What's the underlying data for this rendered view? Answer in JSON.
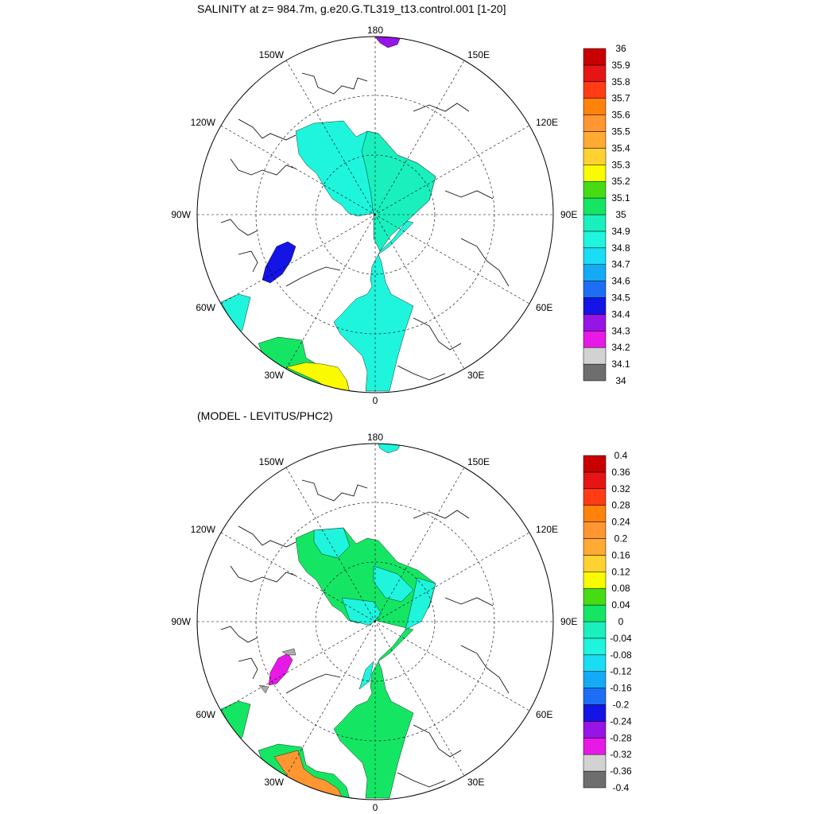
{
  "panels": [
    {
      "title": "SALINITY at z= 984.7m, g.e20.G.TL319_t13.control.001 [1-20]",
      "colorbar": {
        "labels": [
          "34",
          "34.1",
          "34.2",
          "34.3",
          "34.4",
          "34.5",
          "34.6",
          "34.7",
          "34.8",
          "34.9",
          "35",
          "35.1",
          "35.2",
          "35.3",
          "35.4",
          "35.5",
          "35.6",
          "35.7",
          "35.8",
          "35.9",
          "36"
        ],
        "colors": [
          "#6e6e6e",
          "#d2d2d2",
          "#e619e6",
          "#9614e6",
          "#1414e6",
          "#1e6ef5",
          "#14aaf5",
          "#19dcf5",
          "#1ef5dc",
          "#19f0be",
          "#14e664",
          "#46dc14",
          "#fafa00",
          "#ffd232",
          "#ffaa32",
          "#ff9632",
          "#ff820a",
          "#ff3c14",
          "#e61414",
          "#c80000"
        ]
      }
    },
    {
      "title": "(MODEL - LEVITUS/PHC2)",
      "colorbar": {
        "labels": [
          "-0.4",
          "-0.36",
          "-0.32",
          "-0.28",
          "-0.24",
          "-0.2",
          "-0.16",
          "-0.12",
          "-0.08",
          "-0.04",
          "0",
          "0.04",
          "0.08",
          "0.12",
          "0.16",
          "0.2",
          "0.24",
          "0.28",
          "0.32",
          "0.36",
          "0.4"
        ],
        "colors": [
          "#6e6e6e",
          "#d2d2d2",
          "#e619e6",
          "#9614e6",
          "#1414e6",
          "#1e6ef5",
          "#14aaf5",
          "#19dcf5",
          "#1ef5dc",
          "#19f0be",
          "#14e664",
          "#46dc14",
          "#fafa00",
          "#ffd232",
          "#ffaa32",
          "#ff9632",
          "#ff820a",
          "#ff3c14",
          "#e61414",
          "#c80000"
        ]
      }
    }
  ],
  "lon_labels": {
    "top": "180",
    "bottom": "0",
    "left": "90W",
    "right": "90E",
    "upper_left_1": "150W",
    "upper_left_2": "120W",
    "upper_right_1": "150E",
    "upper_right_2": "120E",
    "lower_left_1": "60W",
    "lower_left_2": "30W",
    "lower_right_1": "60E",
    "lower_right_2": "30E"
  },
  "regions": {
    "arctic_basin": "#1ef5dc",
    "eurasian_basin": "#19f0be",
    "labrador_sea": "#1414e6",
    "bering_strait": "#9614e6",
    "gulf_stream_warm": "#fafa00",
    "gulf_stream_green": "#14e664",
    "diff_main": "#14e664",
    "diff_secondary": "#1ef5dc",
    "diff_labrador": "#e619e6",
    "diff_gray": "#aaaaaa",
    "diff_orange": "#ff9632"
  }
}
